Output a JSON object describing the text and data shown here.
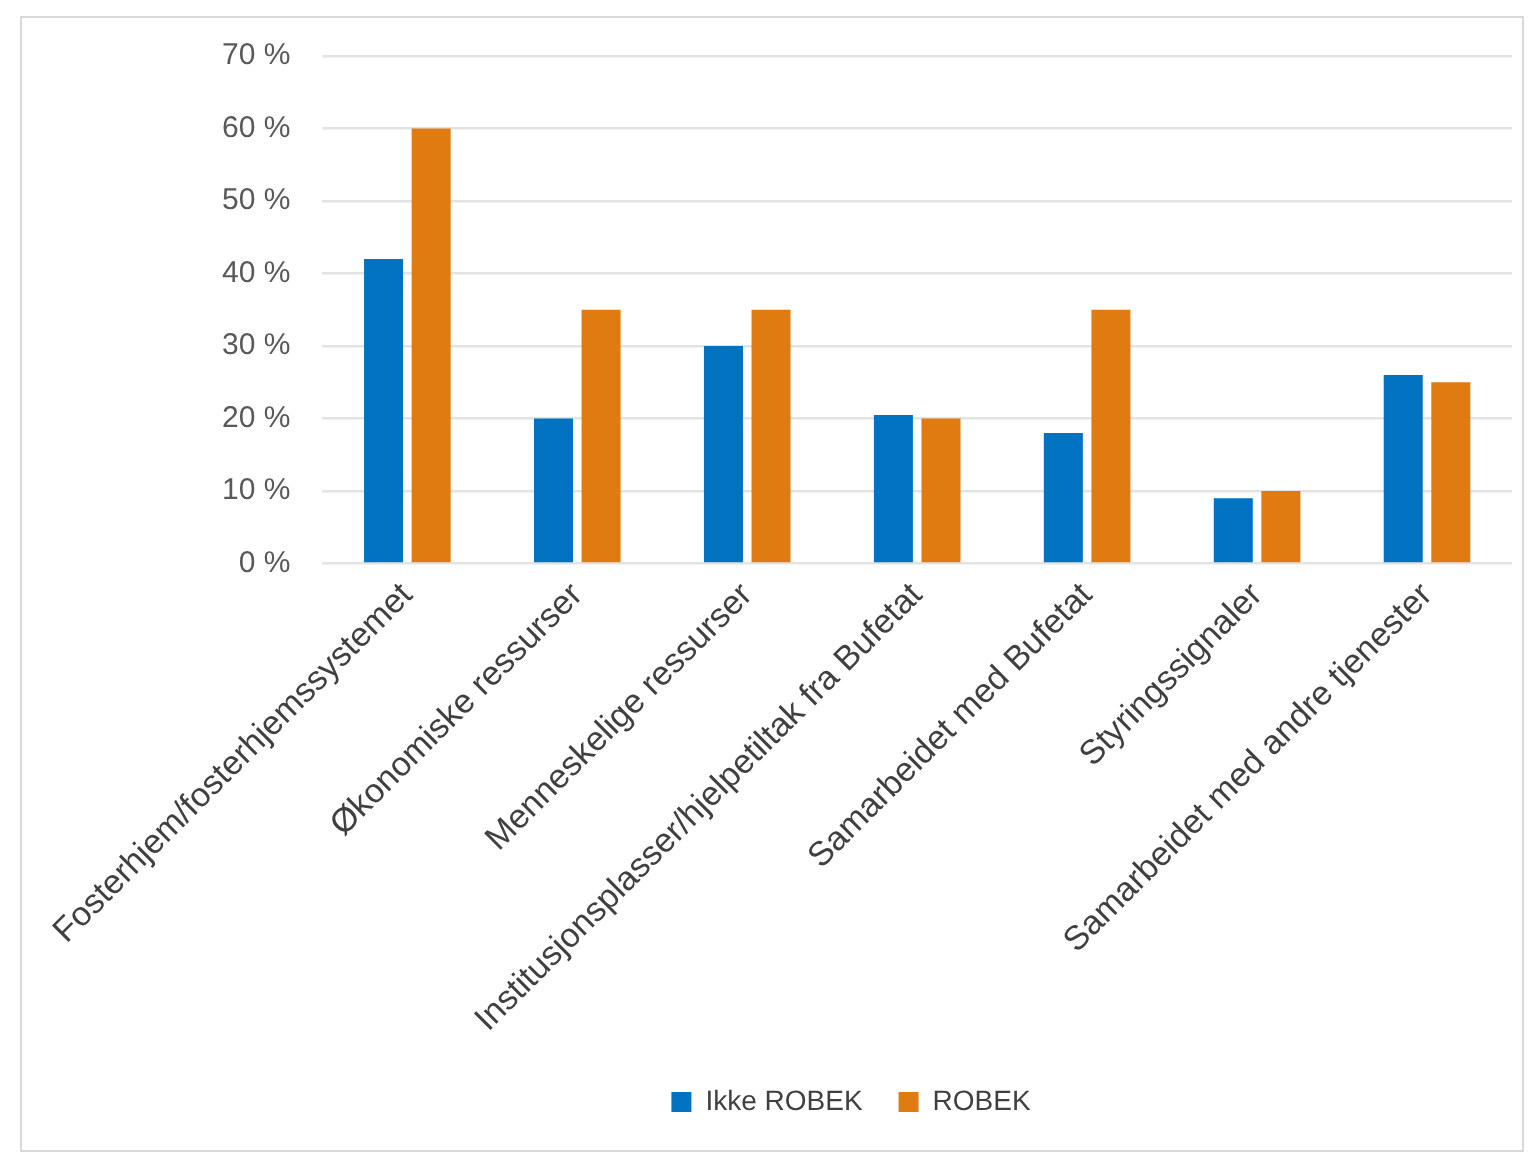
{
  "chart_data": {
    "type": "bar",
    "categories": [
      "Fosterhjem/fosterhjemssystemet",
      "Økonomiske ressurser",
      "Menneskelige ressurser",
      "Institusjonsplasser/hjelpetiltak fra Bufetat",
      "Samarbeidet med Bufetat",
      "Styringssignaler",
      "Samarbeidet med andre tjenester"
    ],
    "series": [
      {
        "name": "Ikke ROBEK",
        "color": "#0173c0",
        "values": [
          42,
          20,
          30,
          20.5,
          18,
          9,
          26
        ]
      },
      {
        "name": "ROBEK",
        "color": "#e07b12",
        "values": [
          60,
          35,
          35,
          20,
          35,
          10,
          25
        ]
      }
    ],
    "ylim": [
      0,
      70
    ],
    "yticks": [
      {
        "value": 0,
        "label": "0 %"
      },
      {
        "value": 10,
        "label": "10 %"
      },
      {
        "value": 20,
        "label": "20 %"
      },
      {
        "value": 30,
        "label": "30 %"
      },
      {
        "value": 40,
        "label": "40 %"
      },
      {
        "value": 50,
        "label": "50 %"
      },
      {
        "value": 60,
        "label": "60 %"
      },
      {
        "value": 70,
        "label": "70 %"
      }
    ],
    "grid": "y",
    "legend": "bottom"
  }
}
